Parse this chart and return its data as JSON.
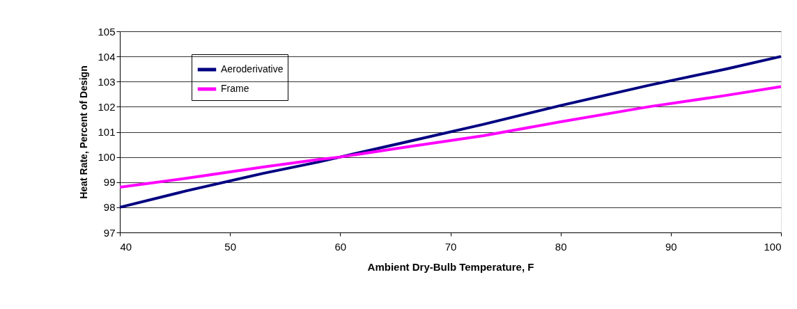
{
  "chart_data": {
    "type": "line",
    "xlabel": "Ambient Dry-Bulb Temperature, F",
    "ylabel": "Heat Rate, Percent of Design",
    "x": [
      40,
      46,
      53,
      58,
      60,
      66,
      73,
      80,
      88,
      95,
      100
    ],
    "series": [
      {
        "name": "Aeroderivative",
        "color": "#000080",
        "values": [
          98.0,
          98.65,
          99.35,
          99.8,
          100.0,
          100.6,
          101.3,
          102.05,
          102.85,
          103.5,
          104.0
        ]
      },
      {
        "name": "Frame",
        "color": "#ff00ff",
        "values": [
          98.8,
          99.15,
          99.6,
          99.9,
          100.0,
          100.4,
          100.85,
          101.4,
          102.0,
          102.45,
          102.8
        ]
      }
    ],
    "xlim": [
      40,
      100
    ],
    "xticks": [
      40,
      50,
      60,
      70,
      80,
      90,
      100
    ],
    "ylim": [
      97,
      105
    ],
    "yticks": [
      97,
      98,
      99,
      100,
      101,
      102,
      103,
      104,
      105
    ],
    "grid": "y",
    "legend": "top left",
    "marker": "none",
    "line_style": "solid"
  }
}
